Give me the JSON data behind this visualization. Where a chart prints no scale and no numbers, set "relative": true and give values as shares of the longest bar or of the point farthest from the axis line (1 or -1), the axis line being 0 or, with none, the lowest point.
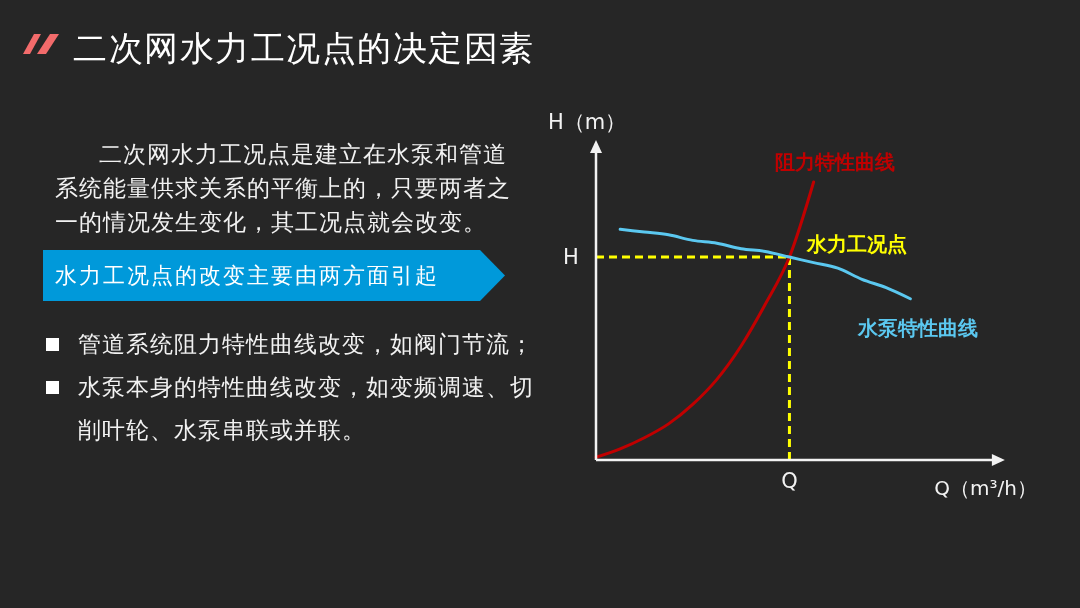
{
  "chart_data": [
    {
      "type": "other",
      "title": "二次网水力工况点的决定因素",
      "annotations": [
        "二次网水力工况点是建立在水泵和管道系统能量供求关系的平衡上的，只要两者之一的情况发生变化，其工况点就会改变。",
        "水力工况点的改变主要由两方面引起",
        "管道系统阻力特性曲线改变，如阀门节流；",
        "水泵本身的特性曲线改变，如变频调速、切削叶轮、水泵串联或并联。"
      ]
    },
    {
      "type": "line",
      "xlabel": "Q（m³/h）",
      "ylabel": "H（m）",
      "relative": true,
      "categories": [
        null,
        null,
        null,
        null,
        null,
        null,
        null,
        null,
        null,
        null,
        null,
        null,
        null,
        null,
        null,
        null,
        null
      ],
      "series": [
        {
          "name": "阻力特性曲线",
          "color": "#c00000",
          "values": [
            0.01,
            0.04,
            0.08,
            0.13,
            0.2,
            0.29,
            0.41,
            0.56,
            0.73,
            1,
            null,
            null,
            null,
            null,
            null,
            null,
            null
          ]
        },
        {
          "name": "水泵特性曲线",
          "color": "#5bc8f0",
          "values": [
            null,
            0.83,
            0.82,
            0.81,
            0.79,
            0.78,
            0.76,
            0.75,
            0.73,
            0.71,
            0.69,
            0.65,
            0.62,
            0.58,
            null,
            null,
            null
          ]
        }
      ],
      "ref_lines": [
        {
          "axis": "y",
          "value": 0.73,
          "label": "H",
          "color": "#ffff00",
          "line_style": "dashed"
        }
      ],
      "annotations": [
        "水力工况点",
        "Q"
      ]
    }
  ]
}
